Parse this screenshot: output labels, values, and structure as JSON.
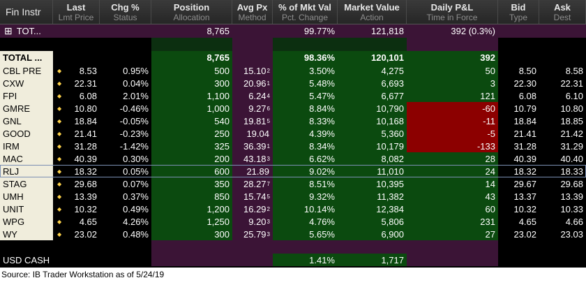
{
  "header": [
    {
      "top": "Fin Instr",
      "sub": ""
    },
    {
      "top": "Last",
      "sub": "Lmt Price"
    },
    {
      "top": "Chg %",
      "sub": "Status"
    },
    {
      "top": "Position",
      "sub": "Allocation"
    },
    {
      "top": "Avg Px",
      "sub": "Method"
    },
    {
      "top": "% of Mkt Val",
      "sub": "Pct. Change"
    },
    {
      "top": "Market Value",
      "sub": "Action"
    },
    {
      "top": "Daily P&L",
      "sub": "Time in Force"
    },
    {
      "top": "Bid",
      "sub": "Type"
    },
    {
      "top": "Ask",
      "sub": "Dest"
    }
  ],
  "aggregate": {
    "expand": "⊞",
    "label": "TOT...",
    "position": "8,765",
    "pct_mkt_val": "99.77%",
    "market_value": "121,818",
    "daily_pnl": "392 (0.3%)"
  },
  "total": {
    "label": "TOTAL ...",
    "position": "8,765",
    "pct_mkt_val": "98.36%",
    "market_value": "120,101",
    "daily_pnl": "392"
  },
  "rows": [
    {
      "sym": "CBL PRE",
      "last": "8.53",
      "chg": "0.95%",
      "pos": "500",
      "avg": "15.10",
      "avg_sup": "2",
      "pct": "3.50%",
      "mv": "4,275",
      "pnl": "50",
      "pnl_color": "green",
      "bid": "8.50",
      "ask": "8.58"
    },
    {
      "sym": "CXW",
      "last": "22.31",
      "chg": "0.04%",
      "pos": "300",
      "avg": "20.96",
      "avg_sup": "1",
      "pct": "5.48%",
      "mv": "6,693",
      "pnl": "3",
      "pnl_color": "green",
      "bid": "22.30",
      "ask": "22.31"
    },
    {
      "sym": "FPI",
      "last": "6.08",
      "chg": "2.01%",
      "pos": "1,100",
      "avg": "6.24",
      "avg_sup": "4",
      "pct": "5.47%",
      "mv": "6,677",
      "pnl": "121",
      "pnl_color": "green",
      "bid": "6.08",
      "ask": "6.10"
    },
    {
      "sym": "GMRE",
      "last": "10.80",
      "chg": "-0.46%",
      "pos": "1,000",
      "avg": "9.27",
      "avg_sup": "6",
      "pct": "8.84%",
      "mv": "10,790",
      "pnl": "-60",
      "pnl_color": "red",
      "bid": "10.79",
      "ask": "10.80"
    },
    {
      "sym": "GNL",
      "last": "18.84",
      "chg": "-0.05%",
      "pos": "540",
      "avg": "19.81",
      "avg_sup": "5",
      "pct": "8.33%",
      "mv": "10,168",
      "pnl": "-11",
      "pnl_color": "red",
      "bid": "18.84",
      "ask": "18.85"
    },
    {
      "sym": "GOOD",
      "last": "21.41",
      "chg": "-0.23%",
      "pos": "250",
      "avg": "19.04",
      "avg_sup": "",
      "pct": "4.39%",
      "mv": "5,360",
      "pnl": "-5",
      "pnl_color": "red",
      "bid": "21.41",
      "ask": "21.42"
    },
    {
      "sym": "IRM",
      "last": "31.28",
      "chg": "-1.42%",
      "pos": "325",
      "avg": "36.39",
      "avg_sup": "1",
      "pct": "8.34%",
      "mv": "10,179",
      "pnl": "-133",
      "pnl_color": "red",
      "bid": "31.28",
      "ask": "31.29"
    },
    {
      "sym": "MAC",
      "last": "40.39",
      "chg": "0.30%",
      "pos": "200",
      "avg": "43.18",
      "avg_sup": "3",
      "pct": "6.62%",
      "mv": "8,082",
      "pnl": "28",
      "pnl_color": "green",
      "bid": "40.39",
      "ask": "40.40"
    },
    {
      "sym": "RLJ",
      "last": "18.32",
      "chg": "0.05%",
      "pos": "600",
      "avg": "21.89",
      "avg_sup": "",
      "pct": "9.02%",
      "mv": "11,010",
      "pnl": "24",
      "pnl_color": "green",
      "bid": "18.32",
      "ask": "18.33"
    },
    {
      "sym": "STAG",
      "last": "29.68",
      "chg": "0.07%",
      "pos": "350",
      "avg": "28.27",
      "avg_sup": "7",
      "pct": "8.51%",
      "mv": "10,395",
      "pnl": "14",
      "pnl_color": "green",
      "bid": "29.67",
      "ask": "29.68"
    },
    {
      "sym": "UMH",
      "last": "13.39",
      "chg": "0.37%",
      "pos": "850",
      "avg": "15.74",
      "avg_sup": "5",
      "pct": "9.32%",
      "mv": "11,382",
      "pnl": "43",
      "pnl_color": "green",
      "bid": "13.37",
      "ask": "13.39"
    },
    {
      "sym": "UNIT",
      "last": "10.32",
      "chg": "0.49%",
      "pos": "1,200",
      "avg": "16.29",
      "avg_sup": "2",
      "pct": "10.14%",
      "mv": "12,384",
      "pnl": "60",
      "pnl_color": "green",
      "bid": "10.32",
      "ask": "10.33"
    },
    {
      "sym": "WPG",
      "last": "4.65",
      "chg": "4.26%",
      "pos": "1,250",
      "avg": "9.20",
      "avg_sup": "3",
      "pct": "4.76%",
      "mv": "5,806",
      "pnl": "231",
      "pnl_color": "green",
      "bid": "4.65",
      "ask": "4.66"
    },
    {
      "sym": "WY",
      "last": "23.02",
      "chg": "0.48%",
      "pos": "300",
      "avg": "25.79",
      "avg_sup": "3",
      "pct": "5.65%",
      "mv": "6,900",
      "pnl": "27",
      "pnl_color": "green",
      "bid": "23.02",
      "ask": "23.03"
    }
  ],
  "cash": {
    "label": "USD CASH",
    "pct_mkt_val": "1.41%",
    "market_value": "1,717"
  },
  "source": "Source:  IB Trader Workstation as of 5/24/19",
  "colors": {
    "purple": "#3b1436",
    "green": "#0b4a0f",
    "red": "#8c0000",
    "symbol_bg": "#f0eddc",
    "diamond": "#ffd34a"
  },
  "selected_row": "RLJ"
}
